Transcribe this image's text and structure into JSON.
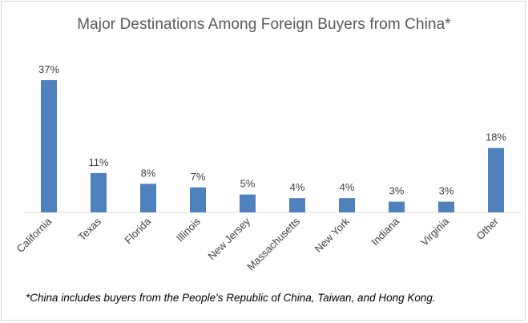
{
  "colors": {
    "bar": "#4f81bd",
    "axis": "#d9d9d9",
    "text": "#404040",
    "title": "#595959"
  },
  "chart_data": {
    "type": "bar",
    "title": "Major Destinations Among Foreign Buyers from China*",
    "categories": [
      "California",
      "Texas",
      "Florida",
      "Illinois",
      "New Jersey",
      "Massachusetts",
      "New York",
      "Indiana",
      "Virginia",
      "Other"
    ],
    "values": [
      37,
      11,
      8,
      7,
      5,
      4,
      4,
      3,
      3,
      18
    ],
    "data_labels": [
      "37%",
      "11%",
      "8%",
      "7%",
      "5%",
      "4%",
      "4%",
      "3%",
      "3%",
      "18%"
    ],
    "value_unit": "%",
    "xlabel": "",
    "ylabel": "",
    "ylim": [
      0,
      37
    ],
    "grid": false,
    "legend": "none",
    "x_tick_rotation_deg": -45
  },
  "footnote": "*China includes buyers from the People's Republic of China, Taiwan, and Hong Kong."
}
